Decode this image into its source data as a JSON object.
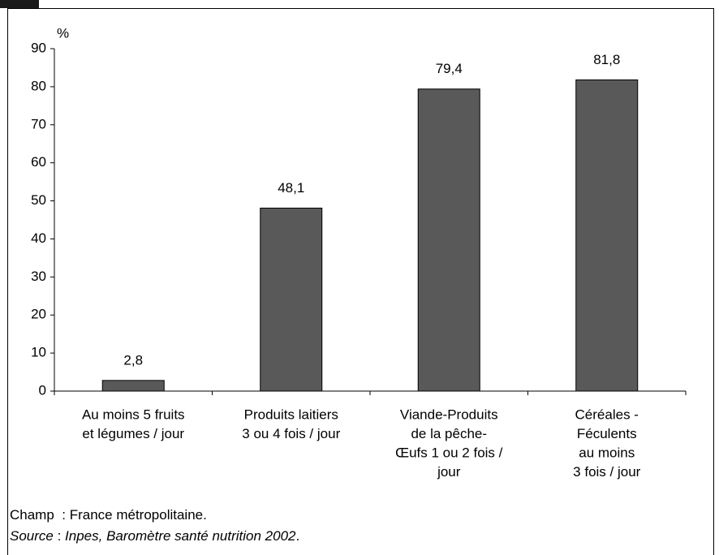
{
  "chart_data": {
    "type": "bar",
    "unit_label": "%",
    "categories": [
      [
        "Au moins 5 fruits",
        "et légumes / jour"
      ],
      [
        "Produits laitiers",
        "3 ou 4 fois / jour"
      ],
      [
        "Viande-Produits",
        "de la pêche-",
        "Œufs 1 ou 2 fois /",
        "jour"
      ],
      [
        "Céréales -",
        "Féculents",
        "au moins",
        "3 fois / jour"
      ]
    ],
    "values": [
      2.8,
      48.1,
      79.4,
      81.8
    ],
    "value_labels": [
      "2,8",
      "48,1",
      "79,4",
      "81,8"
    ],
    "color": "#595959",
    "ylim": [
      0,
      90
    ],
    "yticks": [
      0,
      10,
      20,
      30,
      40,
      50,
      60,
      70,
      80,
      90
    ],
    "grid": false,
    "notes": [
      [
        "Champ",
        "  : France métropolitaine."
      ],
      [
        "Source",
        " : ",
        "Inpes, Baromètre santé nutrition 2002",
        "."
      ]
    ]
  }
}
